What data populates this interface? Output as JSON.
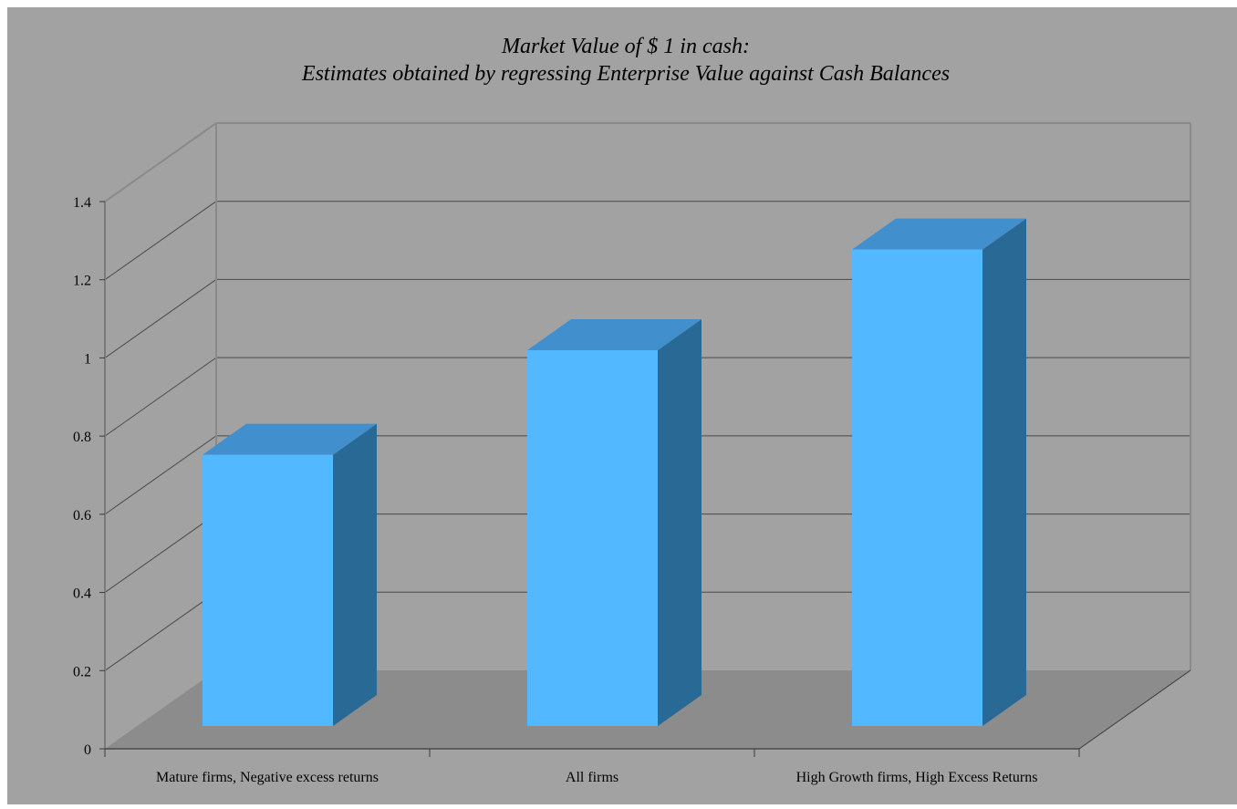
{
  "chart_data": {
    "type": "bar",
    "title": "Market Value of $ 1 in cash:",
    "subtitle": "Estimates obtained by regressing Enterprise Value against Cash Balances",
    "xlabel": "",
    "ylabel": "",
    "categories": [
      "Mature firms, Negative excess returns",
      "All firms",
      "High Growth firms, High Excess Returns"
    ],
    "values": [
      0.7,
      0.97,
      1.23
    ],
    "ylim": [
      0,
      1.4
    ],
    "yticks": [
      "0",
      "0.2",
      "0.4",
      "0.6",
      "0.8",
      "1",
      "1.2",
      "1.4"
    ],
    "grid": true,
    "legend": "none",
    "style": "3d-column"
  },
  "colors": {
    "background": "#a2a2a2",
    "floor": "#8c8c8c",
    "grid": "#4a4a4a",
    "bar_front": "#52b8ff",
    "bar_top": "#428fcd",
    "bar_side": "#286996"
  }
}
